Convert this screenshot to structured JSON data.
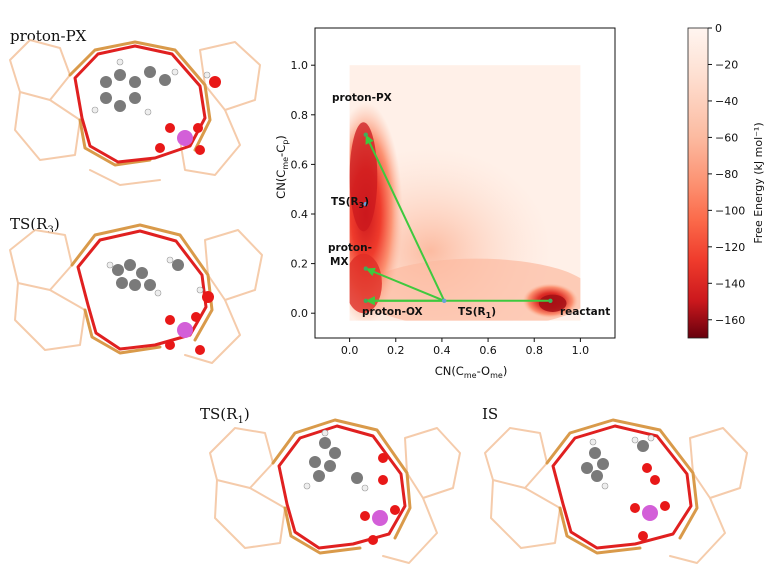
{
  "captions": {
    "proton_px": "proton-PX",
    "ts_r3_base": "TS(R",
    "ts_r3_sub": "3",
    "ts_r3_close": ")",
    "ts_r1_base": "TS(R",
    "ts_r1_sub": "1",
    "ts_r1_close": ")",
    "is": "IS"
  },
  "chart_data": {
    "type": "heatmap",
    "xlabel": "CN(Cme-Ome)",
    "ylabel": "CN(Cme-Cp)",
    "x_ticks": [
      "0.0",
      "0.2",
      "0.4",
      "0.6",
      "0.8",
      "1.0"
    ],
    "y_ticks": [
      "0.0",
      "0.2",
      "0.4",
      "0.6",
      "0.8",
      "1.0"
    ],
    "xlim": [
      -0.15,
      1.15
    ],
    "ylim": [
      -0.1,
      1.15
    ],
    "colorbar": {
      "label": "Free Energy (kJ mol⁻¹)",
      "ticks": [
        "0",
        "−20",
        "−40",
        "−60",
        "−80",
        "−100",
        "−120",
        "−140",
        "−160"
      ],
      "range": [
        -170,
        0
      ],
      "cmap": "Reds_r"
    },
    "states": [
      {
        "name": "proton-PX",
        "x": 0.07,
        "y": 0.72
      },
      {
        "name": "TS(R3)",
        "x": 0.07,
        "y": 0.44
      },
      {
        "name": "proton-MX",
        "x": 0.07,
        "y": 0.18
      },
      {
        "name": "proton-OX",
        "x": 0.07,
        "y": 0.05
      },
      {
        "name": "TS(R1)",
        "x": 0.41,
        "y": 0.05
      },
      {
        "name": "reactant",
        "x": 0.87,
        "y": 0.05
      }
    ],
    "arrows": [
      {
        "from": "TS(R1)",
        "to": "proton-PX"
      },
      {
        "from": "TS(R1)",
        "to": "proton-MX"
      },
      {
        "from": "TS(R1)",
        "to": "proton-OX"
      },
      {
        "from": "reactant",
        "to": "proton-OX"
      }
    ],
    "annotations": {
      "proton_px": "proton-PX",
      "ts_r3": "TS(R",
      "ts_r3_sub": "3",
      "proton_mx_1": "proton-",
      "proton_mx_2": "MX",
      "proton_ox": "proton-OX",
      "ts_r1": "TS(R",
      "ts_r1_sub": "1",
      "reactant": "reactant",
      "close_paren": ")"
    }
  },
  "colors": {
    "framework_red": "#e02020",
    "framework_orange": "#d99a4a",
    "framework_faint": "#f4c6a2",
    "arrow_green": "#3ec93e",
    "aluminum": "#d35fd8",
    "oxygen": "#e81818",
    "carbon": "#7a7a7a",
    "hydrogen": "#f2f2f2"
  }
}
